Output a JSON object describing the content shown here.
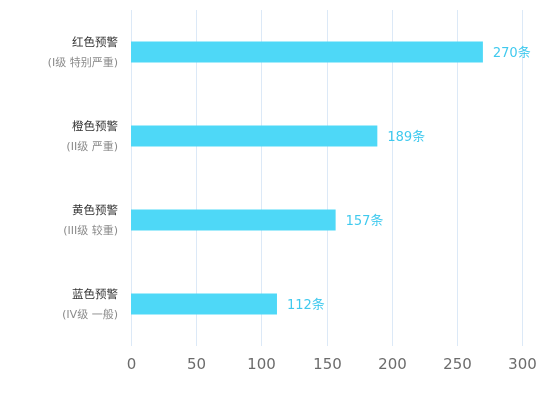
{
  "chart_data": {
    "type": "bar",
    "orientation": "horizontal",
    "categories": [
      {
        "name": "红色预警",
        "sub": "(I级 特别严重)"
      },
      {
        "name": "橙色预警",
        "sub": "(II级 严重)"
      },
      {
        "name": "黄色预警",
        "sub": "(III级 较重)"
      },
      {
        "name": "蓝色预警",
        "sub": "(IV级 一般)"
      }
    ],
    "values": [
      270,
      189,
      157,
      112
    ],
    "value_unit": "条",
    "xlim": [
      0,
      300
    ],
    "xticks": [
      "0",
      "50",
      "100",
      "150",
      "200",
      "250",
      "300"
    ],
    "title": "",
    "xlabel": "",
    "ylabel": "",
    "grid": "vertical",
    "legend": "none",
    "colors": {
      "bar": "#4ed8f7",
      "value_label": "#3fc9ee",
      "grid": "#dce9f7",
      "tick": "#6b6b6b",
      "category": "#333333",
      "category_sub": "#8a8a8a"
    }
  }
}
